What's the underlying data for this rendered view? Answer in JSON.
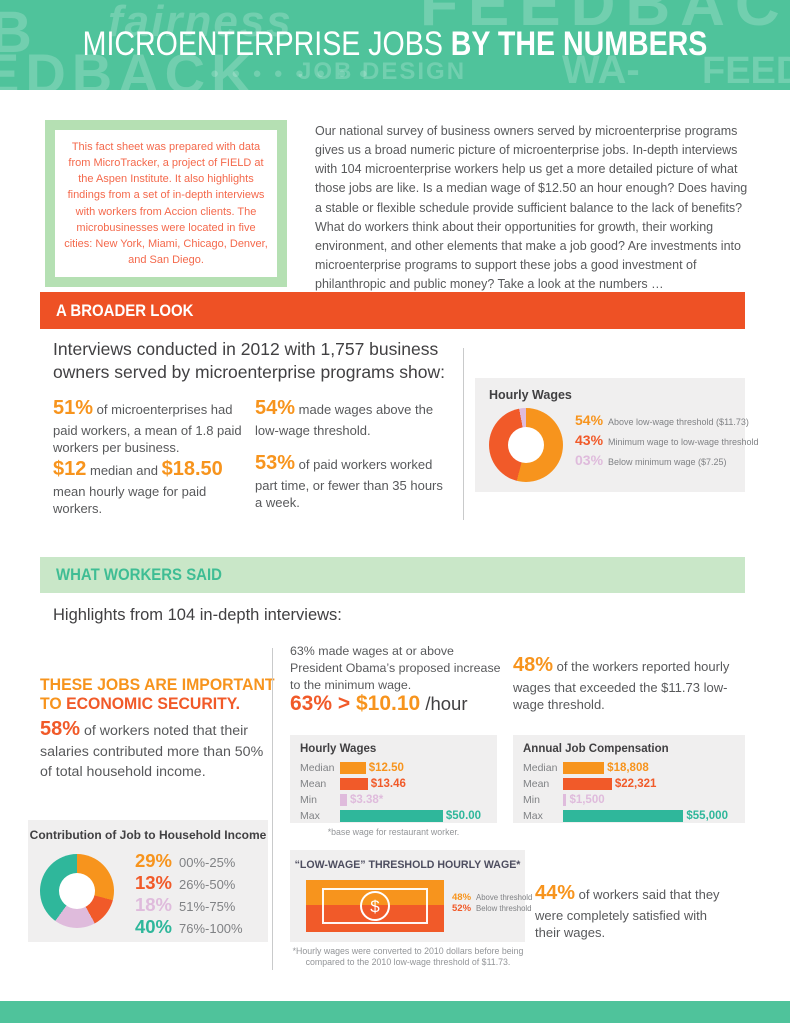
{
  "palette": {
    "teal": "#4FC39B",
    "teal_accent": "#2FB79B",
    "light_green": "#C9E7C8",
    "green_border": "#B5E0B3",
    "banner_green_text": "#3FBD94",
    "orange": "#F7941D",
    "red_orange": "#F15A29",
    "banner_orange": "#EE5125",
    "lavender": "#DFBBDC",
    "body_gray": "#58595B",
    "heading_gray": "#414042",
    "panel_bg": "#F0EFEF",
    "note_text": "#F4694C"
  },
  "header": {
    "title_regular": "MICROENTERPRISE JOBS ",
    "title_bold": "BY THE NUMBERS",
    "pattern": [
      "B",
      "fairness",
      "FEEDBACK",
      "EDBACK",
      "JOB DESIGN",
      "WA-",
      "FEED",
      "● ● ● ● ● ● ● ●"
    ]
  },
  "note_box": {
    "text": "This fact sheet was prepared with data from MicroTracker, a project of FIELD at the Aspen Institute. It also highlights findings from a set of in-depth interviews with workers from Accion clients. The microbusinesses were located in five cities: New York, Miami, Chicago, Denver, and San Diego."
  },
  "intro": {
    "paragraph": "Our national survey of business owners served by microenterprise programs gives us a broad numeric picture of microenterprise jobs. In-depth interviews with 104 microenterprise workers help us get a more detailed picture of what those jobs are like. Is a median wage of $12.50 an hour enough? Does having a stable or flexible schedule provide sufficient balance to the lack of benefits? What do workers think about their opportunities for growth, their working environment, and other elements that make a job good? Are investments into microenterprise programs to support these jobs a good investment of philanthropic and public money? Take a look at the numbers …"
  },
  "broader_look": {
    "banner": "A BROADER LOOK",
    "heading": "Interviews conducted in 2012 with 1,757 business owners served by microenterprise programs show:",
    "stat_51": {
      "value": "51%",
      "text": "of microenterprises had paid workers, a mean of 1.8 paid workers per business."
    },
    "stat_wage": {
      "value1": "$12",
      "mid": "median and",
      "value2": "$18.50",
      "rest": "mean hourly wage for paid workers."
    },
    "stat_54": {
      "value": "54%",
      "text": "made wages above the low-wage threshold."
    },
    "stat_53": {
      "value": "53%",
      "text": "of paid workers worked part time, or fewer than 35 hours a week."
    }
  },
  "workers_said": {
    "banner": "WHAT WORKERS SAID",
    "heading": "Highlights from 104 in-depth interviews:",
    "economic_security": {
      "line1": "THESE JOBS ARE IMPORTANT",
      "line2_prefix": "TO ",
      "line2_em": "ECONOMIC SECURITY."
    },
    "stat_58": {
      "value": "58%",
      "text": "of workers noted that their salaries contributed more than 50% of total household income."
    },
    "stat_63": {
      "text": "63% made wages at or above President Obama’s proposed increase to the minimum wage.",
      "big_left": "63% > ",
      "big_value": "$10.10",
      "big_suffix": " /hour"
    },
    "stat_48": {
      "value": "48%",
      "text": "of the workers reported hourly wages that exceeded the $11.73 low-wage threshold."
    },
    "stat_44": {
      "value": "44%",
      "text": "of workers said that they were completely satisfied with their wages."
    }
  },
  "chart_data": [
    {
      "id": "hourly_wages_donut",
      "type": "pie",
      "donut": true,
      "title": "Hourly Wages",
      "legend_position": "right",
      "segments": [
        {
          "pct_label": "54%",
          "value": 54,
          "label": "Above low-wage threshold ($11.73)",
          "color": "#F7941D"
        },
        {
          "pct_label": "43%",
          "value": 43,
          "label": "Minimum wage to low-wage threshold",
          "color": "#F15A29"
        },
        {
          "pct_label": "03%",
          "value": 3,
          "label": "Below minimum wage ($7.25)",
          "color": "#DFBBDC"
        }
      ]
    },
    {
      "id": "household_income_donut",
      "type": "pie",
      "donut": true,
      "title": "Contribution of Job to Household Income",
      "legend_position": "right",
      "segments": [
        {
          "pct_label": "29%",
          "value": 29,
          "label": "00%-25%",
          "color": "#F7941D"
        },
        {
          "pct_label": "13%",
          "value": 13,
          "label": "26%-50%",
          "color": "#F15A29"
        },
        {
          "pct_label": "18%",
          "value": 18,
          "label": "51%-75%",
          "color": "#DFBBDC"
        },
        {
          "pct_label": "40%",
          "value": 40,
          "label": "76%-100%",
          "color": "#2FB79B"
        }
      ]
    },
    {
      "id": "hourly_wages_bars",
      "type": "bar",
      "title": "Hourly Wages",
      "categories": [
        "Median",
        "Mean",
        "Min",
        "Max"
      ],
      "values": [
        12.5,
        13.46,
        3.38,
        50.0
      ],
      "value_labels": [
        "$12.50",
        "$13.46",
        "$3.38*",
        "$50.00"
      ],
      "colors": [
        "#F7941D",
        "#F15A29",
        "#DFBBDC",
        "#2FB79B"
      ],
      "xlim": [
        0,
        50
      ],
      "footnote": "*base wage for restaurant worker."
    },
    {
      "id": "annual_job_compensation_bars",
      "type": "bar",
      "title": "Annual Job Compensation",
      "categories": [
        "Median",
        "Mean",
        "Min",
        "Max"
      ],
      "values": [
        18808,
        22321,
        1500,
        55000
      ],
      "value_labels": [
        "$18,808",
        "$22,321",
        "$1,500",
        "$55,000"
      ],
      "colors": [
        "#F7941D",
        "#F15A29",
        "#DFBBDC",
        "#2FB79B"
      ],
      "xlim": [
        0,
        55000
      ]
    },
    {
      "id": "low_wage_threshold_pictogram",
      "type": "pictogram",
      "title": "“LOW-WAGE” THRESHOLD HOURLY WAGE*",
      "segments": [
        {
          "pct_label": "48%",
          "value": 48,
          "label": "Above threshold",
          "color": "#F7941D"
        },
        {
          "pct_label": "52%",
          "value": 52,
          "label": "Below threshold",
          "color": "#F15A29"
        }
      ],
      "footnote": "*Hourly wages were converted to 2010 dollars before being compared to the 2010 low-wage threshold of $11.73."
    }
  ]
}
